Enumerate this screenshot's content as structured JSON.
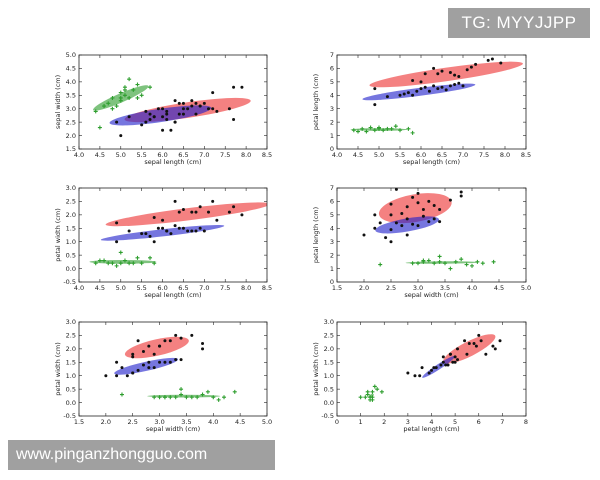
{
  "watermark_top": "TG: MYYJJPP",
  "watermark_bottom": "www.pinganzhongguo.com",
  "colors": {
    "setosa": "#2e9e2e",
    "versicolor": "#2222cc",
    "virginica": "#ee3333",
    "point": "#111111"
  },
  "chart_data": [
    {
      "type": "scatter",
      "xlabel": "sepal length (cm)",
      "ylabel": "sepal width (cm)",
      "xlim": [
        4.0,
        8.5
      ],
      "ylim": [
        1.5,
        5.0
      ],
      "xticks": [
        4.0,
        4.5,
        5.0,
        5.5,
        6.0,
        6.5,
        7.0,
        7.5,
        8.0,
        8.5
      ],
      "yticks": [
        1.5,
        2.0,
        2.5,
        3.0,
        3.5,
        4.0,
        4.5,
        5.0
      ],
      "grid": false,
      "ellipses": [
        {
          "class": "virginica",
          "cx": 6.6,
          "cy": 2.95,
          "rx": 1.55,
          "ry": 0.28,
          "angle": 13
        },
        {
          "class": "versicolor",
          "cx": 5.95,
          "cy": 2.75,
          "rx": 1.25,
          "ry": 0.24,
          "angle": 13
        },
        {
          "class": "setosa",
          "cx": 5.0,
          "cy": 3.4,
          "rx": 0.8,
          "ry": 0.14,
          "angle": 34
        }
      ],
      "series": [
        {
          "class": "setosa",
          "marker": "plus",
          "x": [
            4.4,
            4.6,
            4.7,
            4.8,
            4.9,
            5.0,
            5.0,
            5.1,
            5.1,
            5.2,
            5.3,
            5.4,
            5.4,
            5.5,
            5.7,
            4.5,
            4.8,
            5.0,
            5.2,
            5.1
          ],
          "y": [
            2.9,
            3.1,
            3.2,
            3.0,
            3.1,
            3.4,
            3.6,
            3.5,
            3.8,
            3.4,
            3.7,
            3.9,
            3.4,
            3.5,
            3.8,
            2.3,
            3.4,
            3.3,
            4.1,
            3.7
          ]
        },
        {
          "class": "versicolor",
          "marker": "dot",
          "x": [
            5.0,
            5.5,
            5.6,
            5.7,
            5.8,
            5.9,
            6.0,
            6.1,
            6.2,
            6.3,
            6.4,
            6.5,
            6.6,
            6.7,
            6.8,
            6.9,
            7.0,
            5.2,
            5.6,
            6.0,
            6.1,
            5.7
          ],
          "y": [
            2.0,
            2.4,
            2.9,
            2.8,
            2.7,
            3.0,
            2.2,
            2.9,
            2.2,
            2.5,
            3.2,
            2.8,
            3.0,
            3.1,
            2.8,
            3.1,
            3.2,
            2.7,
            2.5,
            2.7,
            2.8,
            2.6
          ]
        },
        {
          "class": "virginica",
          "marker": "dot",
          "x": [
            4.9,
            5.8,
            6.0,
            6.3,
            6.4,
            6.5,
            6.7,
            6.9,
            7.1,
            7.2,
            7.3,
            7.6,
            7.7,
            7.7,
            7.9,
            6.1,
            6.3,
            6.5,
            7.2,
            6.8
          ],
          "y": [
            2.5,
            2.7,
            3.0,
            3.3,
            2.8,
            3.0,
            3.3,
            3.1,
            3.0,
            3.6,
            2.9,
            3.0,
            3.8,
            2.6,
            3.8,
            2.6,
            2.5,
            3.2,
            3.0,
            3.2
          ]
        }
      ]
    },
    {
      "type": "scatter",
      "xlabel": "sepal length (cm)",
      "ylabel": "petal length (cm)",
      "xlim": [
        4.0,
        8.5
      ],
      "ylim": [
        0,
        7
      ],
      "xticks": [
        4.0,
        4.5,
        5.0,
        5.5,
        6.0,
        6.5,
        7.0,
        7.5,
        8.0,
        8.5
      ],
      "yticks": [
        0,
        1,
        2,
        3,
        4,
        5,
        6,
        7
      ],
      "grid": false,
      "ellipses": [
        {
          "class": "virginica",
          "cx": 6.6,
          "cy": 5.55,
          "rx": 2.0,
          "ry": 0.32,
          "angle": 24
        },
        {
          "class": "versicolor",
          "cx": 5.95,
          "cy": 4.25,
          "rx": 1.45,
          "ry": 0.2,
          "angle": 22
        },
        {
          "class": "setosa",
          "cx": 5.0,
          "cy": 1.45,
          "rx": 0.68,
          "ry": 0.1,
          "angle": 0
        }
      ],
      "series": [
        {
          "class": "setosa",
          "marker": "plus",
          "x": [
            4.4,
            4.6,
            4.7,
            4.8,
            4.9,
            5.0,
            5.1,
            5.2,
            5.3,
            5.4,
            5.5,
            5.7,
            5.8,
            4.5,
            5.0
          ],
          "y": [
            1.4,
            1.5,
            1.3,
            1.6,
            1.4,
            1.5,
            1.4,
            1.5,
            1.5,
            1.7,
            1.4,
            1.5,
            1.2,
            1.3,
            1.6
          ]
        },
        {
          "class": "versicolor",
          "marker": "dot",
          "x": [
            4.9,
            5.2,
            5.5,
            5.6,
            5.7,
            5.8,
            5.9,
            6.0,
            6.1,
            6.2,
            6.3,
            6.4,
            6.5,
            6.6,
            6.7,
            6.8,
            6.9,
            7.0
          ],
          "y": [
            3.3,
            3.9,
            4.0,
            4.1,
            4.2,
            4.0,
            4.3,
            4.5,
            4.6,
            4.3,
            4.7,
            4.5,
            4.6,
            4.4,
            4.7,
            4.8,
            4.9,
            4.7
          ]
        },
        {
          "class": "virginica",
          "marker": "dot",
          "x": [
            4.9,
            5.8,
            6.0,
            6.3,
            6.4,
            6.5,
            6.7,
            6.9,
            7.1,
            7.2,
            7.3,
            7.6,
            7.7,
            7.9,
            6.1,
            6.8
          ],
          "y": [
            4.5,
            5.1,
            5.0,
            6.0,
            5.6,
            5.8,
            5.7,
            5.4,
            5.9,
            6.1,
            6.3,
            6.6,
            6.7,
            6.4,
            5.6,
            5.5
          ]
        }
      ]
    },
    {
      "type": "scatter",
      "xlabel": "sepal length (cm)",
      "ylabel": "petal width (cm)",
      "xlim": [
        4.0,
        8.5
      ],
      "ylim": [
        -0.5,
        3.0
      ],
      "xticks": [
        4.0,
        4.5,
        5.0,
        5.5,
        6.0,
        6.5,
        7.0,
        7.5,
        8.0,
        8.5
      ],
      "yticks": [
        -0.5,
        0.0,
        0.5,
        1.0,
        1.5,
        2.0,
        2.5,
        3.0
      ],
      "grid": false,
      "ellipses": [
        {
          "class": "virginica",
          "cx": 6.6,
          "cy": 2.02,
          "rx": 2.0,
          "ry": 0.22,
          "angle": 11
        },
        {
          "class": "versicolor",
          "cx": 6.0,
          "cy": 1.33,
          "rx": 1.5,
          "ry": 0.13,
          "angle": 10
        },
        {
          "class": "setosa",
          "cx": 5.05,
          "cy": 0.25,
          "rx": 0.8,
          "ry": 0.07,
          "angle": 0
        }
      ],
      "series": [
        {
          "class": "setosa",
          "marker": "plus",
          "x": [
            4.4,
            4.6,
            4.7,
            4.8,
            4.9,
            5.0,
            5.1,
            5.2,
            5.3,
            5.4,
            5.5,
            5.7,
            5.8,
            4.5,
            5.0
          ],
          "y": [
            0.2,
            0.3,
            0.2,
            0.2,
            0.1,
            0.2,
            0.3,
            0.2,
            0.2,
            0.4,
            0.2,
            0.4,
            0.2,
            0.3,
            0.6
          ]
        },
        {
          "class": "versicolor",
          "marker": "dot",
          "x": [
            4.9,
            5.2,
            5.5,
            5.6,
            5.7,
            5.8,
            5.9,
            6.0,
            6.1,
            6.2,
            6.3,
            6.4,
            6.5,
            6.6,
            6.7,
            6.8,
            6.9,
            7.0
          ],
          "y": [
            1.0,
            1.4,
            1.3,
            1.3,
            1.2,
            1.0,
            1.5,
            1.5,
            1.4,
            1.3,
            1.6,
            1.5,
            1.5,
            1.4,
            1.4,
            1.4,
            1.5,
            1.4
          ]
        },
        {
          "class": "virginica",
          "marker": "dot",
          "x": [
            4.9,
            5.8,
            6.0,
            6.3,
            6.4,
            6.5,
            6.7,
            6.9,
            7.1,
            7.2,
            7.3,
            7.6,
            7.7,
            7.9,
            6.1,
            6.8
          ],
          "y": [
            1.7,
            1.9,
            1.8,
            2.5,
            2.1,
            2.2,
            2.1,
            2.3,
            2.1,
            2.5,
            1.8,
            2.1,
            2.3,
            2.0,
            1.4,
            2.1
          ]
        }
      ]
    },
    {
      "type": "scatter",
      "xlabel": "sepal width (cm)",
      "ylabel": "petal length (cm)",
      "xlim": [
        1.5,
        5.0
      ],
      "ylim": [
        0,
        7
      ],
      "xticks": [
        1.5,
        2.0,
        2.5,
        3.0,
        3.5,
        4.0,
        4.5,
        5.0
      ],
      "yticks": [
        0,
        1,
        2,
        3,
        4,
        5,
        6,
        7
      ],
      "grid": false,
      "ellipses": [
        {
          "class": "virginica",
          "cx": 2.95,
          "cy": 5.5,
          "rx": 0.82,
          "ry": 0.42,
          "angle": 35
        },
        {
          "class": "versicolor",
          "cx": 2.8,
          "cy": 4.25,
          "rx": 0.72,
          "ry": 0.2,
          "angle": 35
        },
        {
          "class": "setosa",
          "cx": 3.45,
          "cy": 1.45,
          "rx": 0.68,
          "ry": 0.09,
          "angle": 2
        }
      ],
      "series": [
        {
          "class": "setosa",
          "marker": "plus",
          "x": [
            2.3,
            2.9,
            3.0,
            3.1,
            3.2,
            3.3,
            3.4,
            3.5,
            3.6,
            3.7,
            3.8,
            3.9,
            4.0,
            4.1,
            4.2,
            4.4,
            3.4,
            3.1
          ],
          "y": [
            1.3,
            1.4,
            1.4,
            1.5,
            1.6,
            1.4,
            1.5,
            1.4,
            1.0,
            1.5,
            1.7,
            1.3,
            1.2,
            1.5,
            1.4,
            1.5,
            1.9,
            1.6
          ]
        },
        {
          "class": "versicolor",
          "marker": "dot",
          "x": [
            2.0,
            2.2,
            2.3,
            2.4,
            2.5,
            2.6,
            2.7,
            2.8,
            2.9,
            3.0,
            3.1,
            3.2,
            3.3,
            3.4,
            2.5,
            2.8
          ],
          "y": [
            3.5,
            4.0,
            4.4,
            3.3,
            3.9,
            4.4,
            4.2,
            4.7,
            4.3,
            4.2,
            4.9,
            4.5,
            4.7,
            4.5,
            3.0,
            3.5
          ]
        },
        {
          "class": "virginica",
          "marker": "dot",
          "x": [
            2.2,
            2.5,
            2.6,
            2.7,
            2.8,
            2.9,
            3.0,
            3.1,
            3.2,
            3.3,
            3.4,
            3.6,
            3.8,
            3.8,
            2.5,
            3.0
          ],
          "y": [
            5.0,
            5.8,
            6.9,
            5.1,
            5.6,
            6.3,
            5.9,
            5.4,
            6.0,
            5.7,
            5.4,
            6.1,
            6.7,
            6.4,
            5.0,
            6.6
          ]
        }
      ]
    },
    {
      "type": "scatter",
      "xlabel": "sepal width (cm)",
      "ylabel": "petal width (cm)",
      "xlim": [
        1.5,
        5.0
      ],
      "ylim": [
        -0.5,
        3.0
      ],
      "xticks": [
        1.5,
        2.0,
        2.5,
        3.0,
        3.5,
        4.0,
        4.5,
        5.0
      ],
      "yticks": [
        -0.5,
        0.0,
        0.5,
        1.0,
        1.5,
        2.0,
        2.5,
        3.0
      ],
      "grid": false,
      "ellipses": [
        {
          "class": "virginica",
          "cx": 2.95,
          "cy": 2.05,
          "rx": 0.65,
          "ry": 0.25,
          "angle": 24
        },
        {
          "class": "versicolor",
          "cx": 2.75,
          "cy": 1.35,
          "rx": 0.65,
          "ry": 0.14,
          "angle": 24
        },
        {
          "class": "setosa",
          "cx": 3.45,
          "cy": 0.24,
          "rx": 0.68,
          "ry": 0.05,
          "angle": 0
        }
      ],
      "series": [
        {
          "class": "setosa",
          "marker": "plus",
          "x": [
            2.3,
            2.9,
            3.0,
            3.1,
            3.2,
            3.3,
            3.4,
            3.5,
            3.6,
            3.7,
            3.8,
            3.9,
            4.0,
            4.1,
            4.2,
            4.4,
            3.4,
            3.1
          ],
          "y": [
            0.3,
            0.2,
            0.2,
            0.2,
            0.2,
            0.2,
            0.3,
            0.2,
            0.2,
            0.2,
            0.3,
            0.4,
            0.2,
            0.1,
            0.2,
            0.4,
            0.5,
            0.2
          ]
        },
        {
          "class": "versicolor",
          "marker": "dot",
          "x": [
            2.0,
            2.2,
            2.3,
            2.4,
            2.5,
            2.6,
            2.7,
            2.8,
            2.9,
            3.0,
            3.1,
            3.2,
            3.3,
            3.4,
            2.5,
            2.8
          ],
          "y": [
            1.0,
            1.0,
            1.3,
            1.0,
            1.1,
            1.2,
            1.4,
            1.5,
            1.3,
            1.5,
            1.5,
            1.5,
            1.6,
            1.6,
            1.1,
            1.3
          ]
        },
        {
          "class": "virginica",
          "marker": "dot",
          "x": [
            2.2,
            2.5,
            2.6,
            2.7,
            2.8,
            2.9,
            3.0,
            3.1,
            3.2,
            3.3,
            3.4,
            3.6,
            3.8,
            3.8,
            2.5,
            3.0
          ],
          "y": [
            1.5,
            1.8,
            2.3,
            1.9,
            2.1,
            1.8,
            2.1,
            2.3,
            2.3,
            2.5,
            2.4,
            2.5,
            2.2,
            2.0,
            1.7,
            2.1
          ]
        }
      ]
    },
    {
      "type": "scatter",
      "xlabel": "petal length (cm)",
      "ylabel": "petal width (cm)",
      "xlim": [
        0,
        8
      ],
      "ylim": [
        -0.5,
        3.0
      ],
      "xticks": [
        0,
        1,
        2,
        3,
        4,
        5,
        6,
        7,
        8
      ],
      "yticks": [
        -0.5,
        0.0,
        0.5,
        1.0,
        1.5,
        2.0,
        2.5,
        3.0
      ],
      "grid": false,
      "ellipses": [
        {
          "class": "virginica",
          "cx": 5.6,
          "cy": 2.0,
          "rx": 1.2,
          "ry": 0.28,
          "angle": 24
        },
        {
          "class": "versicolor",
          "cx": 4.3,
          "cy": 1.33,
          "rx": 0.8,
          "ry": 0.1,
          "angle": 30
        },
        {
          "class": "setosa",
          "cx": 1.45,
          "cy": 0.25,
          "rx": 0.12,
          "ry": 0.06,
          "angle": 30
        }
      ],
      "series": [
        {
          "class": "setosa",
          "marker": "plus",
          "x": [
            1.0,
            1.2,
            1.3,
            1.4,
            1.4,
            1.5,
            1.5,
            1.6,
            1.7,
            1.9,
            1.3,
            1.5
          ],
          "y": [
            0.2,
            0.2,
            0.3,
            0.2,
            0.1,
            0.4,
            0.2,
            0.6,
            0.5,
            0.4,
            0.4,
            0.1
          ]
        },
        {
          "class": "versicolor",
          "marker": "dot",
          "x": [
            3.0,
            3.3,
            3.5,
            3.9,
            4.0,
            4.1,
            4.2,
            4.4,
            4.5,
            4.6,
            4.7,
            4.8,
            4.9,
            5.0,
            5.1,
            3.6
          ],
          "y": [
            1.1,
            1.0,
            1.0,
            1.1,
            1.2,
            1.3,
            1.3,
            1.4,
            1.5,
            1.4,
            1.4,
            1.8,
            1.5,
            1.7,
            1.6,
            1.3
          ]
        },
        {
          "class": "virginica",
          "marker": "dot",
          "x": [
            4.5,
            4.8,
            5.0,
            5.1,
            5.4,
            5.6,
            5.8,
            6.0,
            6.1,
            6.3,
            6.6,
            6.7,
            6.9,
            5.5,
            5.9
          ],
          "y": [
            1.7,
            1.8,
            1.5,
            2.0,
            2.3,
            2.2,
            2.2,
            2.5,
            2.3,
            1.8,
            2.1,
            2.0,
            2.3,
            1.8,
            2.1
          ]
        }
      ]
    }
  ]
}
